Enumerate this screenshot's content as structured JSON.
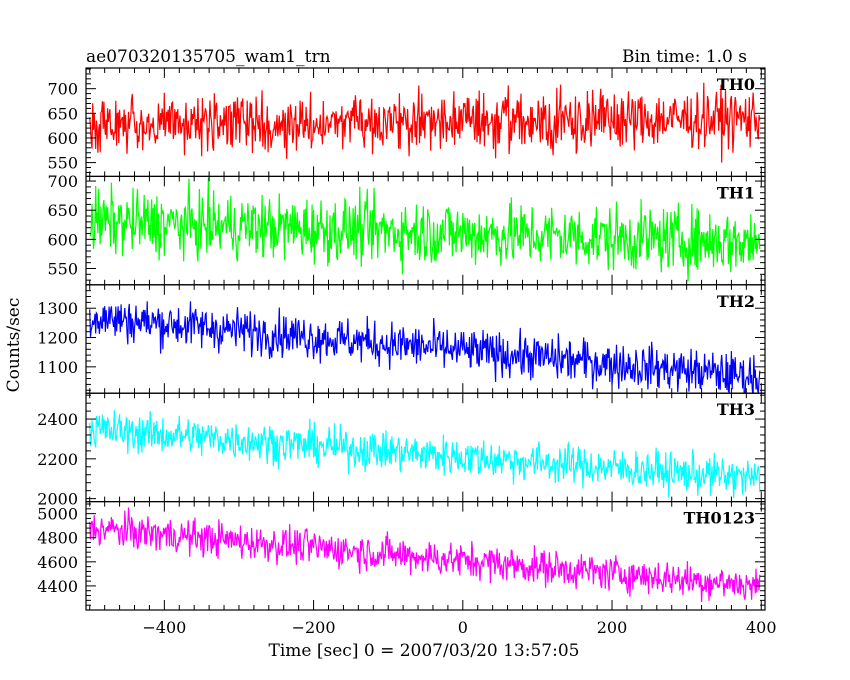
{
  "header": {
    "title": "ae070320135705_wam1_trn",
    "bin_time": "Bin time: 1.0 s"
  },
  "chart_data": {
    "type": "line",
    "xlabel": "Time [sec] 0 = 2007/03/20 13:57:05",
    "ylabel": "Counts/sec",
    "xlim": [
      -505,
      405
    ],
    "x_ticks": [
      -400,
      -200,
      0,
      200,
      400
    ],
    "x_tick_labels": [
      "−400",
      "−200",
      "0",
      "200",
      "400"
    ],
    "bin_time_s": 1.0,
    "panels": [
      {
        "name": "TH0",
        "color": "#ff0000",
        "ylim": [
          522,
          742
        ],
        "y_ticks": [
          550,
          600,
          650,
          700
        ],
        "y_tick_labels": [
          "550",
          "600",
          "650",
          "700"
        ],
        "mean_start": 625,
        "mean_end": 640,
        "noise_sd": 30
      },
      {
        "name": "TH1",
        "color": "#00ff00",
        "ylim": [
          522,
          708
        ],
        "y_ticks": [
          550,
          600,
          650,
          700
        ],
        "y_tick_labels": [
          "550",
          "600",
          "650",
          "700"
        ],
        "mean_start": 630,
        "mean_end": 595,
        "noise_sd": 28
      },
      {
        "name": "TH2",
        "color": "#0000ff",
        "ylim": [
          1010,
          1380
        ],
        "y_ticks": [
          1100,
          1200,
          1300
        ],
        "y_tick_labels": [
          "1100",
          "1200",
          "1300"
        ],
        "mean_start": 1270,
        "mean_end": 1065,
        "noise_sd": 38
      },
      {
        "name": "TH3",
        "color": "#00ffff",
        "ylim": [
          1985,
          2530
        ],
        "y_ticks": [
          2000,
          2200,
          2400
        ],
        "y_tick_labels": [
          "2000",
          "2200",
          "2400"
        ],
        "mean_start": 2350,
        "mean_end": 2100,
        "noise_sd": 50
      },
      {
        "name": "TH0123",
        "color": "#ff00ff",
        "ylim": [
          4200,
          5100
        ],
        "y_ticks": [
          4400,
          4600,
          4800,
          5000
        ],
        "y_tick_labels": [
          "4400",
          "4600",
          "4800",
          "5000"
        ],
        "mean_start": 4880,
        "mean_end": 4400,
        "noise_sd": 75
      }
    ]
  }
}
